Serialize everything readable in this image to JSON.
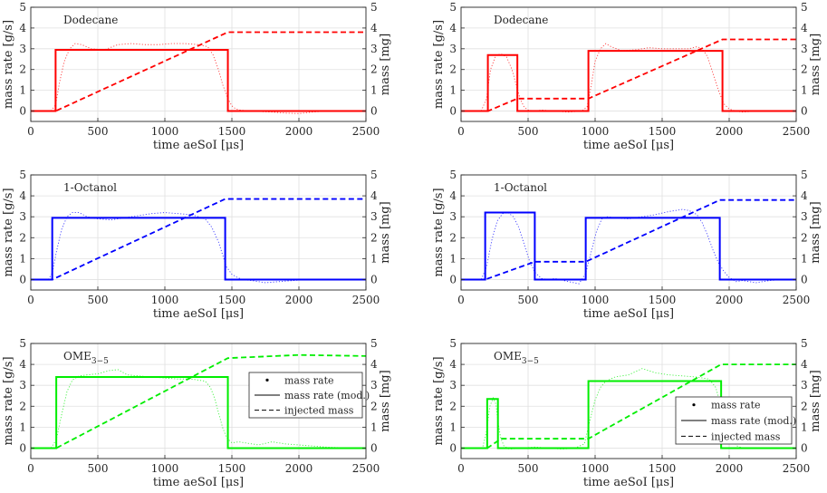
{
  "chart_data": [
    {
      "type": "line",
      "panel": "top-left",
      "title": "Dodecane",
      "color": "#ff0000",
      "xlabel": "time aeSoI [μs]",
      "ylabel": "mass rate [g/s]",
      "ylabel_right": "mass [mg]",
      "xlim": [
        0,
        2500
      ],
      "ylim": [
        -0.5,
        5
      ],
      "ylim_right": [
        -0.5,
        5
      ],
      "xticks": [
        "0",
        "500",
        "1000",
        "1500",
        "2000",
        "2500"
      ],
      "yticks": [
        "0",
        "1",
        "2",
        "3",
        "4",
        "5"
      ],
      "grid": true,
      "legend": null,
      "series": [
        {
          "name": "mass rate",
          "style": "dotted-thin",
          "x": [
            0,
            150,
            185,
            215,
            250,
            290,
            330,
            380,
            450,
            550,
            650,
            750,
            850,
            950,
            1050,
            1150,
            1250,
            1320,
            1360,
            1400,
            1430,
            1470,
            1500,
            1530,
            1560,
            1600,
            1700,
            1800,
            1900,
            2000,
            2100,
            2200,
            2300,
            2400,
            2500
          ],
          "y": [
            0,
            0,
            0.3,
            1.4,
            2.4,
            3.0,
            3.25,
            3.2,
            3.0,
            2.95,
            3.2,
            3.25,
            3.2,
            3.2,
            3.25,
            3.25,
            3.2,
            3.1,
            2.7,
            2.0,
            1.3,
            0.6,
            0.25,
            0.1,
            0.05,
            0.02,
            -0.02,
            -0.05,
            -0.1,
            -0.12,
            -0.05,
            0,
            0.02,
            0,
            0
          ]
        },
        {
          "name": "mass rate (mod.)",
          "style": "solid",
          "x": [
            0,
            185,
            185,
            1470,
            1470,
            2500
          ],
          "y": [
            0,
            0,
            2.95,
            2.95,
            0,
            0
          ]
        },
        {
          "name": "injected mass",
          "style": "dashed",
          "x": [
            0,
            185,
            1470,
            2500
          ],
          "y": [
            0,
            0,
            3.8,
            3.8
          ]
        }
      ]
    },
    {
      "type": "line",
      "panel": "top-right",
      "title": "Dodecane",
      "color": "#ff0000",
      "xlabel": "time aeSoI [μs]",
      "ylabel": "mass rate [g/s]",
      "ylabel_right": "mass [mg]",
      "xlim": [
        0,
        2500
      ],
      "ylim": [
        -0.5,
        5
      ],
      "ylim_right": [
        -0.5,
        5
      ],
      "xticks": [
        "0",
        "500",
        "1000",
        "1500",
        "2000",
        "2500"
      ],
      "yticks": [
        "0",
        "1",
        "2",
        "3",
        "4",
        "5"
      ],
      "grid": true,
      "legend": null,
      "series": [
        {
          "name": "mass rate",
          "style": "dotted-thin",
          "x": [
            0,
            150,
            190,
            220,
            260,
            300,
            340,
            380,
            410,
            440,
            470,
            500,
            550,
            600,
            700,
            800,
            900,
            940,
            970,
            1000,
            1040,
            1080,
            1120,
            1200,
            1300,
            1400,
            1500,
            1600,
            1700,
            1760,
            1800,
            1840,
            1880,
            1920,
            1960,
            2000,
            2050,
            2100,
            2200,
            2300,
            2400,
            2500
          ],
          "y": [
            0,
            0,
            0.6,
            2.0,
            2.7,
            2.75,
            2.6,
            2.0,
            1.3,
            0.6,
            0.2,
            0.05,
            0,
            0.05,
            0,
            -0.05,
            0,
            0.2,
            1.2,
            2.4,
            3.0,
            3.25,
            3.1,
            2.9,
            2.95,
            3.05,
            3.0,
            3.0,
            3.0,
            3.1,
            3.0,
            2.6,
            1.8,
            1.0,
            0.35,
            0.1,
            0.0,
            -0.05,
            0,
            0.02,
            0,
            0
          ]
        },
        {
          "name": "mass rate (mod.)",
          "style": "solid",
          "x": [
            0,
            200,
            200,
            420,
            420,
            950,
            950,
            1950,
            1950,
            2500
          ],
          "y": [
            0,
            0,
            2.7,
            2.7,
            0,
            0,
            2.9,
            2.9,
            0,
            0
          ]
        },
        {
          "name": "injected mass",
          "style": "dashed",
          "x": [
            0,
            200,
            420,
            950,
            1950,
            2500
          ],
          "y": [
            0,
            0,
            0.6,
            0.6,
            3.45,
            3.45
          ]
        }
      ]
    },
    {
      "type": "line",
      "panel": "middle-left",
      "title": "1-Octanol",
      "color": "#0000ff",
      "xlabel": "time aeSoI [μs]",
      "ylabel": "mass rate [g/s]",
      "ylabel_right": "mass [mg]",
      "xlim": [
        0,
        2500
      ],
      "ylim": [
        -0.5,
        5
      ],
      "ylim_right": [
        -0.5,
        5
      ],
      "xticks": [
        "0",
        "500",
        "1000",
        "1500",
        "2000",
        "2500"
      ],
      "yticks": [
        "0",
        "1",
        "2",
        "3",
        "4",
        "5"
      ],
      "grid": true,
      "legend": null,
      "series": [
        {
          "name": "mass rate",
          "style": "dotted-thin",
          "x": [
            0,
            130,
            160,
            190,
            230,
            270,
            310,
            360,
            420,
            500,
            600,
            700,
            800,
            900,
            1000,
            1100,
            1200,
            1300,
            1350,
            1400,
            1430,
            1460,
            1500,
            1540,
            1580,
            1650,
            1750,
            1850,
            1950,
            2050,
            2150,
            2250,
            2350,
            2500
          ],
          "y": [
            0,
            0,
            0.3,
            1.3,
            2.4,
            3.0,
            3.2,
            3.2,
            3.0,
            2.9,
            2.85,
            2.95,
            3.05,
            3.15,
            3.2,
            3.15,
            3.1,
            2.9,
            2.5,
            1.8,
            1.2,
            0.6,
            0.25,
            0.1,
            0.0,
            -0.05,
            -0.15,
            -0.1,
            -0.05,
            0,
            0.02,
            0,
            0.02,
            0
          ]
        },
        {
          "name": "mass rate (mod.)",
          "style": "solid",
          "x": [
            0,
            160,
            160,
            1450,
            1450,
            2500
          ],
          "y": [
            0,
            0,
            2.95,
            2.95,
            0,
            0
          ]
        },
        {
          "name": "injected mass",
          "style": "dashed",
          "x": [
            0,
            160,
            1450,
            2500
          ],
          "y": [
            0,
            0,
            3.85,
            3.85
          ]
        }
      ]
    },
    {
      "type": "line",
      "panel": "middle-right",
      "title": "1-Octanol",
      "color": "#0000ff",
      "xlabel": "time aeSoI [μs]",
      "ylabel": "mass rate [g/s]",
      "ylabel_right": "mass [mg]",
      "xlim": [
        0,
        2500
      ],
      "ylim": [
        -0.5,
        5
      ],
      "ylim_right": [
        -0.5,
        5
      ],
      "xticks": [
        "0",
        "500",
        "1000",
        "1500",
        "2000",
        "2500"
      ],
      "yticks": [
        "0",
        "1",
        "2",
        "3",
        "4",
        "5"
      ],
      "grid": true,
      "legend": null,
      "series": [
        {
          "name": "mass rate",
          "style": "dotted-thin",
          "x": [
            0,
            150,
            190,
            230,
            270,
            310,
            350,
            390,
            430,
            470,
            510,
            550,
            600,
            650,
            700,
            800,
            880,
            930,
            970,
            1010,
            1050,
            1090,
            1150,
            1250,
            1350,
            1450,
            1550,
            1650,
            1700,
            1760,
            1800,
            1840,
            1880,
            1920,
            1960,
            2000,
            2050,
            2100,
            2200,
            2300,
            2400,
            2500
          ],
          "y": [
            0,
            0,
            0.6,
            1.9,
            2.8,
            3.15,
            3.2,
            3.0,
            2.5,
            1.7,
            0.9,
            0.35,
            0.05,
            0,
            0.05,
            -0.1,
            -0.2,
            0.3,
            1.3,
            2.3,
            2.9,
            3.0,
            2.95,
            2.9,
            3.0,
            3.1,
            3.25,
            3.35,
            3.3,
            3.1,
            2.7,
            2.1,
            1.4,
            0.8,
            0.4,
            0.1,
            -0.1,
            -0.05,
            -0.15,
            -0.05,
            0,
            0
          ]
        },
        {
          "name": "mass rate (mod.)",
          "style": "solid",
          "x": [
            0,
            180,
            180,
            550,
            550,
            930,
            930,
            1930,
            1930,
            2500
          ],
          "y": [
            0,
            0,
            3.2,
            3.2,
            0,
            0,
            2.95,
            2.95,
            0,
            0
          ]
        },
        {
          "name": "injected mass",
          "style": "dashed",
          "x": [
            0,
            180,
            550,
            930,
            1930,
            2500
          ],
          "y": [
            0,
            0,
            0.85,
            0.85,
            3.8,
            3.8
          ]
        }
      ]
    },
    {
      "type": "line",
      "panel": "bottom-left",
      "title": "OME",
      "title_sub": "3−5",
      "color": "#00ee00",
      "xlabel": "time aeSoI [μs]",
      "ylabel": "mass rate [g/s]",
      "ylabel_right": "mass [mg]",
      "xlim": [
        0,
        2500
      ],
      "ylim": [
        -0.5,
        5
      ],
      "ylim_right": [
        -0.5,
        5
      ],
      "xticks": [
        "0",
        "500",
        "1000",
        "1500",
        "2000",
        "2500"
      ],
      "yticks": [
        "0",
        "1",
        "2",
        "3",
        "4",
        "5"
      ],
      "grid": true,
      "legend": {
        "position": "right",
        "entries": [
          "mass rate",
          "mass rate (mod.)",
          "injected mass"
        ]
      },
      "series": [
        {
          "name": "mass rate",
          "style": "dotted-thin",
          "x": [
            0,
            150,
            190,
            230,
            270,
            310,
            360,
            420,
            500,
            580,
            650,
            720,
            800,
            900,
            1000,
            1100,
            1200,
            1300,
            1340,
            1370,
            1400,
            1430,
            1460,
            1500,
            1550,
            1600,
            1700,
            1800,
            1900,
            2000,
            2100,
            2200,
            2300,
            2400,
            2500
          ],
          "y": [
            0,
            0,
            0.4,
            1.6,
            2.7,
            3.25,
            3.45,
            3.5,
            3.55,
            3.7,
            3.75,
            3.5,
            3.45,
            3.4,
            3.35,
            3.3,
            3.3,
            3.2,
            2.9,
            2.4,
            1.7,
            1.0,
            0.5,
            0.25,
            0.3,
            0.25,
            0.15,
            0.3,
            0.2,
            0.15,
            0.1,
            0.05,
            0.02,
            0,
            0
          ]
        },
        {
          "name": "mass rate (mod.)",
          "style": "solid",
          "x": [
            0,
            190,
            190,
            1470,
            1470,
            2500
          ],
          "y": [
            0,
            0,
            3.4,
            3.4,
            0,
            0
          ]
        },
        {
          "name": "injected mass",
          "style": "dashed",
          "x": [
            0,
            190,
            1470,
            2000,
            2500
          ],
          "y": [
            0,
            0,
            4.3,
            4.45,
            4.4
          ]
        }
      ]
    },
    {
      "type": "line",
      "panel": "bottom-right",
      "title": "OME",
      "title_sub": "3−5",
      "color": "#00ee00",
      "xlabel": "time aeSoI [μs]",
      "ylabel": "mass rate [g/s]",
      "ylabel_right": "mass [mg]",
      "xlim": [
        0,
        2500
      ],
      "ylim": [
        -0.5,
        5
      ],
      "ylim_right": [
        -0.5,
        5
      ],
      "xticks": [
        "0",
        "500",
        "1000",
        "1500",
        "2000",
        "2500"
      ],
      "yticks": [
        "0",
        "1",
        "2",
        "3",
        "4",
        "5"
      ],
      "grid": true,
      "legend": {
        "position": "bottom-right",
        "entries": [
          "mass rate",
          "mass rate (mod.)",
          "injected mass"
        ]
      },
      "series": [
        {
          "name": "mass rate",
          "style": "dotted-thin",
          "x": [
            0,
            160,
            190,
            215,
            240,
            260,
            275,
            295,
            320,
            360,
            450,
            550,
            650,
            750,
            850,
            920,
            960,
            1000,
            1040,
            1080,
            1150,
            1250,
            1350,
            1450,
            1550,
            1650,
            1750,
            1850,
            1900,
            1940,
            1980,
            2020,
            2060,
            2100,
            2200,
            2300,
            2400,
            2500
          ],
          "y": [
            0,
            0,
            0.8,
            2.0,
            2.4,
            2.1,
            1.3,
            0.5,
            0.1,
            -0.05,
            0,
            0.05,
            0,
            -0.05,
            0,
            0.2,
            1.3,
            2.3,
            2.9,
            3.2,
            3.4,
            3.5,
            3.8,
            3.6,
            3.5,
            3.45,
            3.4,
            3.3,
            2.9,
            2.0,
            1.1,
            0.4,
            0.1,
            0.0,
            0,
            0,
            0,
            0
          ]
        },
        {
          "name": "mass rate (mod.)",
          "style": "solid",
          "x": [
            0,
            195,
            195,
            275,
            275,
            950,
            950,
            1940,
            1940,
            2500
          ],
          "y": [
            0,
            0,
            2.35,
            2.35,
            0,
            0,
            3.2,
            3.2,
            0,
            0
          ]
        },
        {
          "name": "injected mass",
          "style": "dashed",
          "x": [
            0,
            195,
            300,
            950,
            1940,
            2500
          ],
          "y": [
            0,
            0,
            0.45,
            0.45,
            4.0,
            4.0
          ]
        }
      ]
    }
  ]
}
